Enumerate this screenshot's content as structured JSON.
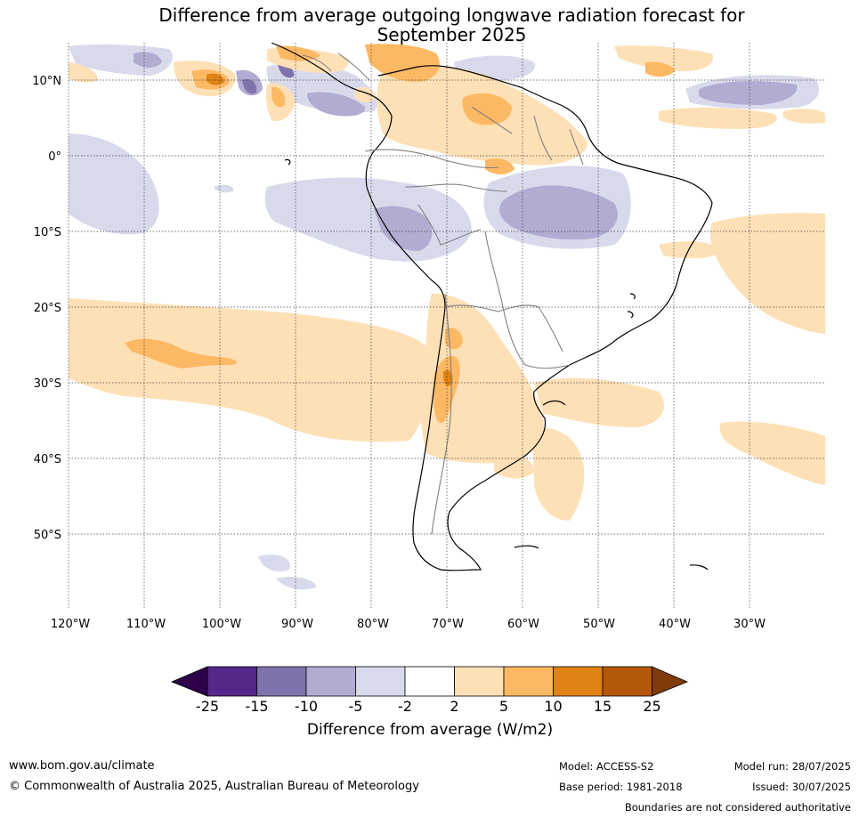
{
  "title_line1": "Difference from average outgoing longwave radiation forecast for",
  "title_line2": "September 2025",
  "lat_labels": [
    "10°N",
    "0°",
    "10°S",
    "20°S",
    "30°S",
    "40°S",
    "50°S"
  ],
  "lon_labels": [
    "120°W",
    "110°W",
    "100°W",
    "90°W",
    "80°W",
    "70°W",
    "60°W",
    "50°W",
    "40°W",
    "30°W"
  ],
  "legend": {
    "title": "Difference from average (W/m2)",
    "boundaries": [
      "-25",
      "-15",
      "-10",
      "-5",
      "-2",
      "2",
      "5",
      "10",
      "15",
      "25"
    ],
    "colors": [
      "#2d004b",
      "#542788",
      "#8073ac",
      "#b2abd2",
      "#d8daeb",
      "#ffffff",
      "#fee0b6",
      "#fdb863",
      "#e08214",
      "#b35806",
      "#7f3b08"
    ]
  },
  "footer": {
    "website": "www.bom.gov.au/climate",
    "copyright": "© Commonwealth of Australia 2025, Australian Bureau of Meteorology",
    "model": "Model: ACCESS-S2",
    "base_period": "Base period: 1981-2018",
    "model_run": "Model run: 28/07/2025",
    "issued": "Issued: 30/07/2025",
    "disclaimer": "Boundaries are not considered authoritative"
  }
}
